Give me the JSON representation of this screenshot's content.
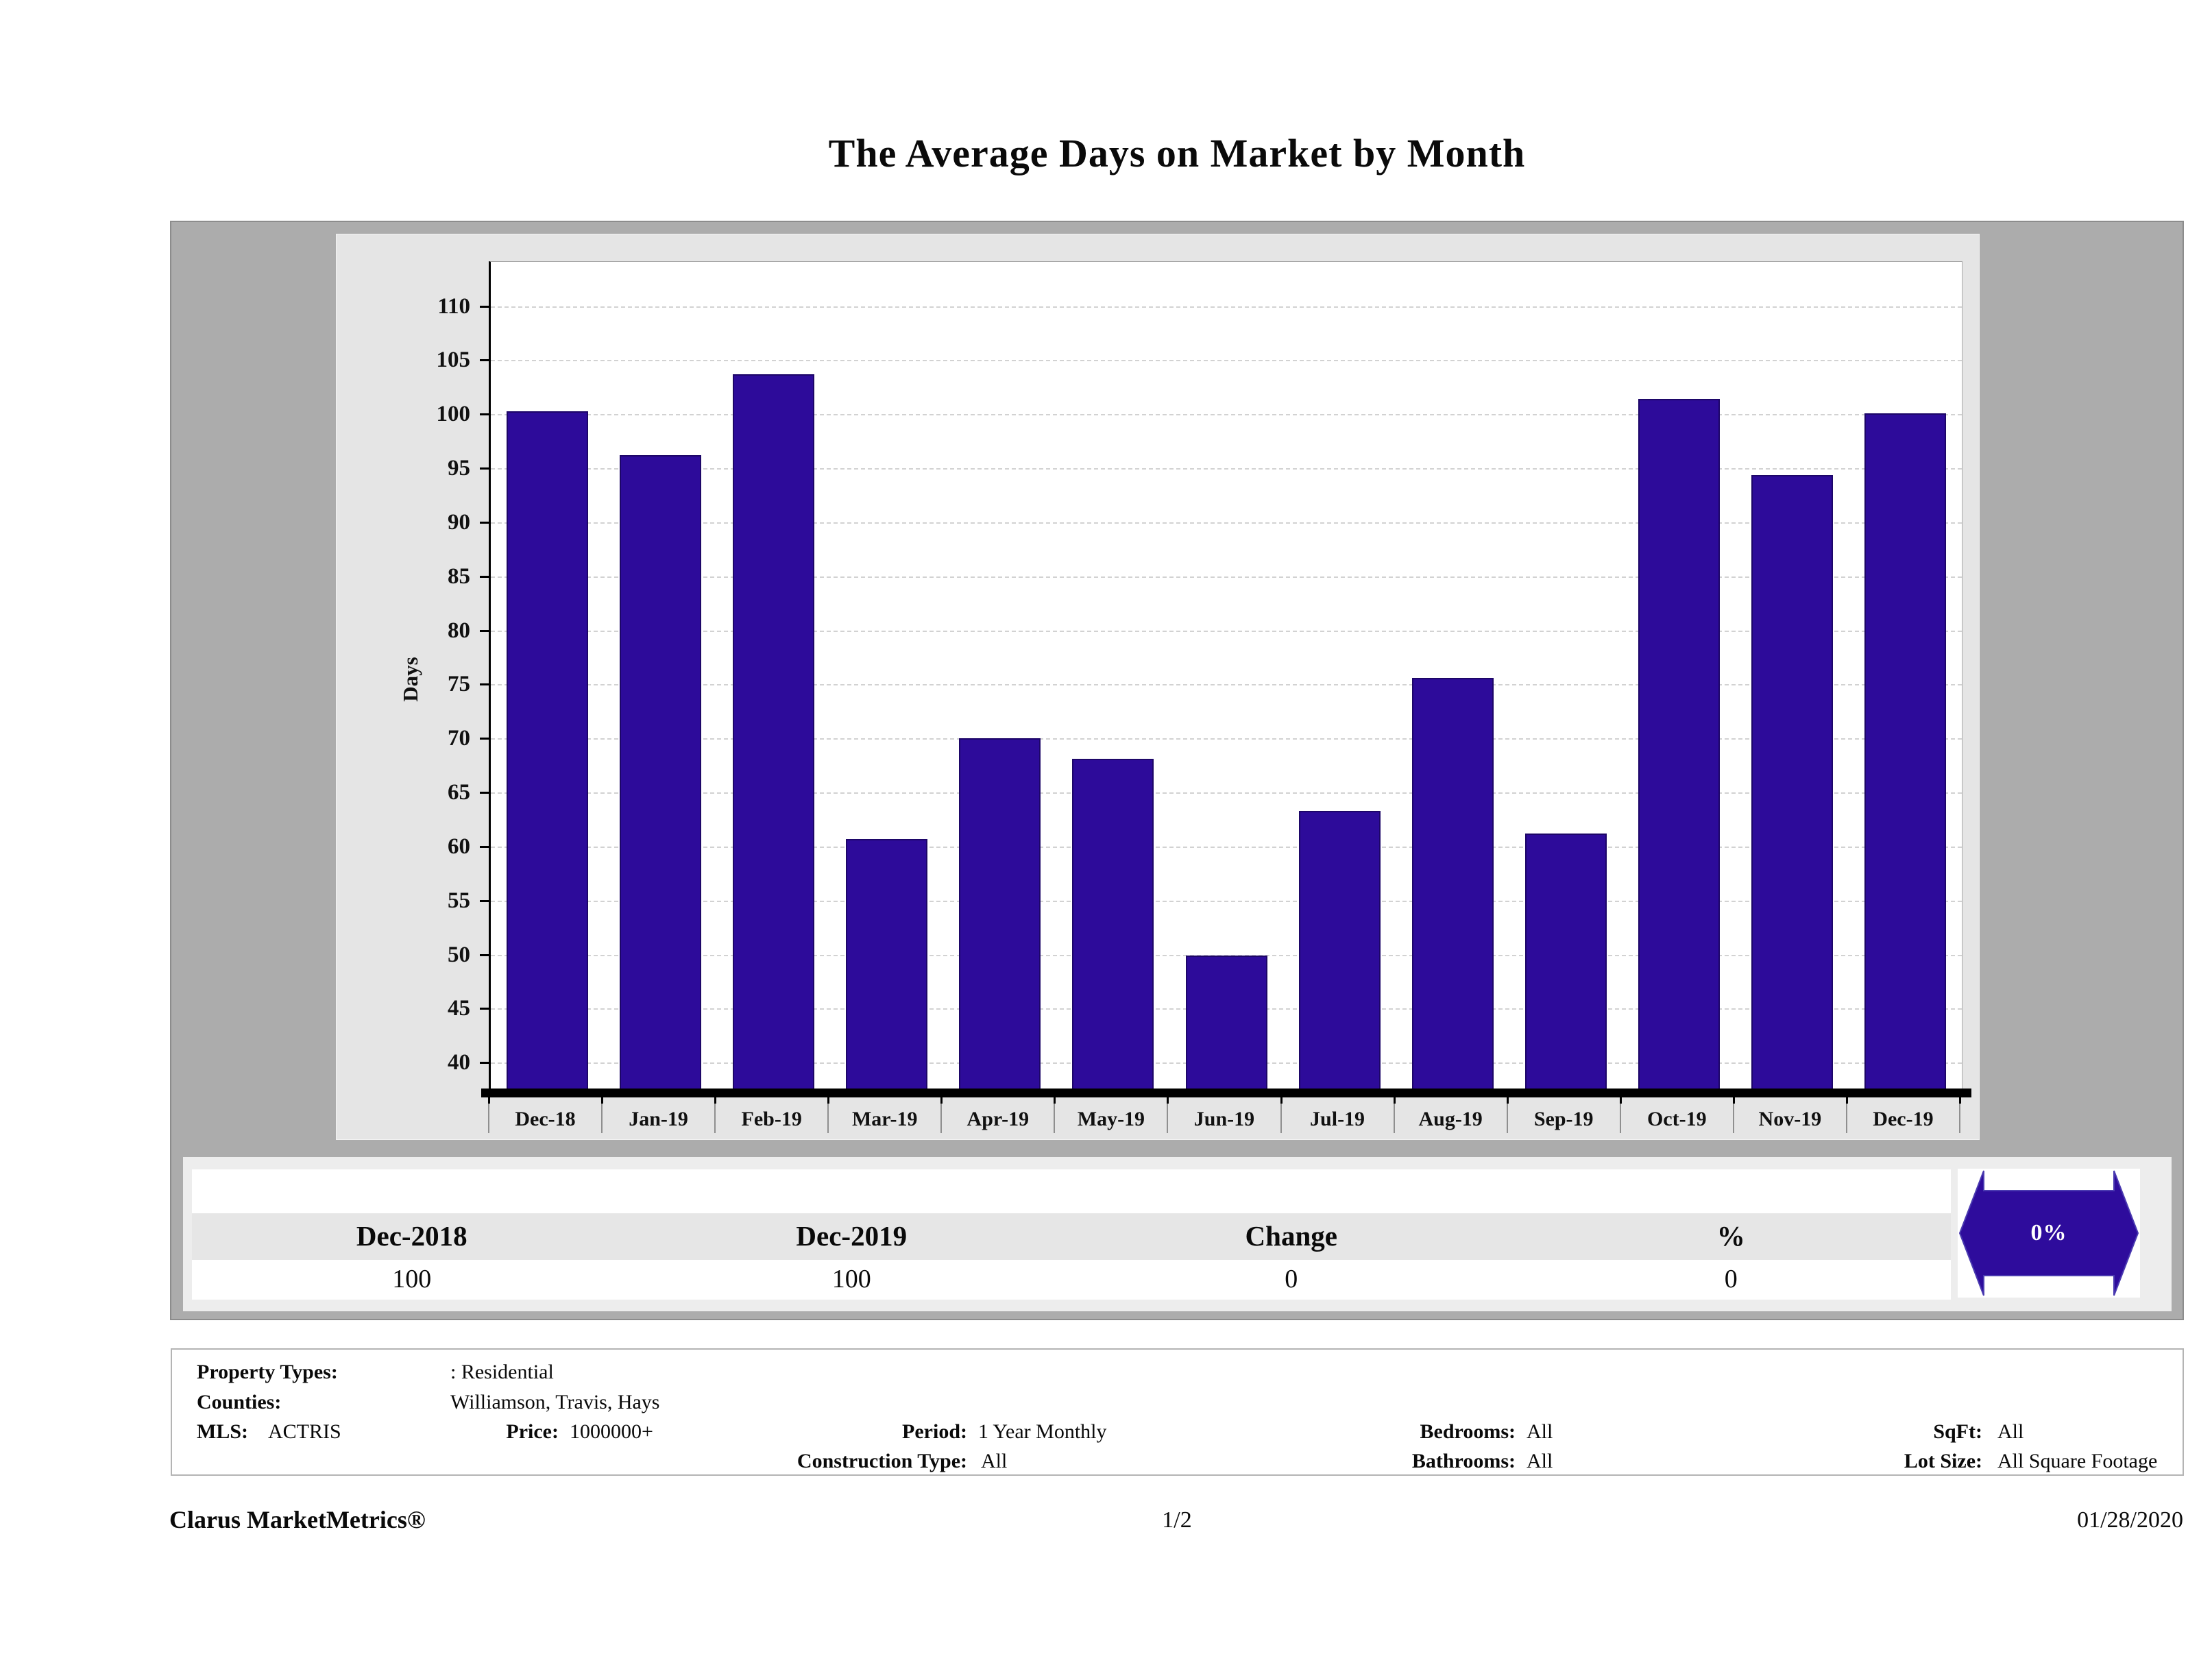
{
  "page": {
    "title": "The Average Days on Market by Month"
  },
  "chart_data": {
    "type": "bar",
    "title": "The Average Days on Market by Month",
    "xlabel": "",
    "ylabel": "Days",
    "categories": [
      "Dec-18",
      "Jan-19",
      "Feb-19",
      "Mar-19",
      "Apr-19",
      "May-19",
      "Jun-19",
      "Jul-19",
      "Aug-19",
      "Sep-19",
      "Oct-19",
      "Nov-19",
      "Dec-19"
    ],
    "values": [
      100.3,
      96.2,
      103.7,
      60.7,
      70.0,
      68.1,
      49.9,
      63.3,
      75.6,
      61.2,
      101.4,
      94.4,
      100.1
    ],
    "yticks": [
      40,
      45,
      50,
      55,
      60,
      65,
      70,
      75,
      80,
      85,
      90,
      95,
      100,
      105,
      110
    ],
    "ylim": [
      37.6,
      114.1
    ],
    "grid": "horizontal-dashed",
    "legend_position": "none",
    "bar_color": "#2d0b9a",
    "bar_border_color": "#1d0668",
    "plot_background": "#ffffff",
    "panel_background": "#e5e5e5",
    "outer_background": "#acacac"
  },
  "summary": {
    "columns": [
      {
        "header": "Dec-2018",
        "value": "100"
      },
      {
        "header": "Dec-2019",
        "value": "100"
      },
      {
        "header": "Change",
        "value": "0"
      },
      {
        "header": "%",
        "value": "0"
      }
    ],
    "badge": {
      "label": "0%",
      "icon": "double-arrow-icon",
      "color": "#2e0c9c"
    }
  },
  "criteria": {
    "property_types": {
      "label": "Property Types:",
      "value": ": Residential"
    },
    "counties": {
      "label": "Counties:",
      "value": "Williamson, Travis, Hays"
    },
    "mls": {
      "label": "MLS:",
      "value": "ACTRIS"
    },
    "price": {
      "label": "Price:",
      "value": "1000000+"
    },
    "period": {
      "label": "Period:",
      "value": "1 Year Monthly"
    },
    "construction_type": {
      "label": "Construction Type:",
      "value": "All"
    },
    "bedrooms": {
      "label": "Bedrooms:",
      "value": "All"
    },
    "bathrooms": {
      "label": "Bathrooms:",
      "value": "All"
    },
    "sqft": {
      "label": "SqFt:",
      "value": "All"
    },
    "lot_size": {
      "label": "Lot Size:",
      "value": "All Square Footage"
    }
  },
  "page_footer": {
    "brand": "Clarus MarketMetrics®",
    "page_number": "1/2",
    "date": "01/28/2020"
  }
}
